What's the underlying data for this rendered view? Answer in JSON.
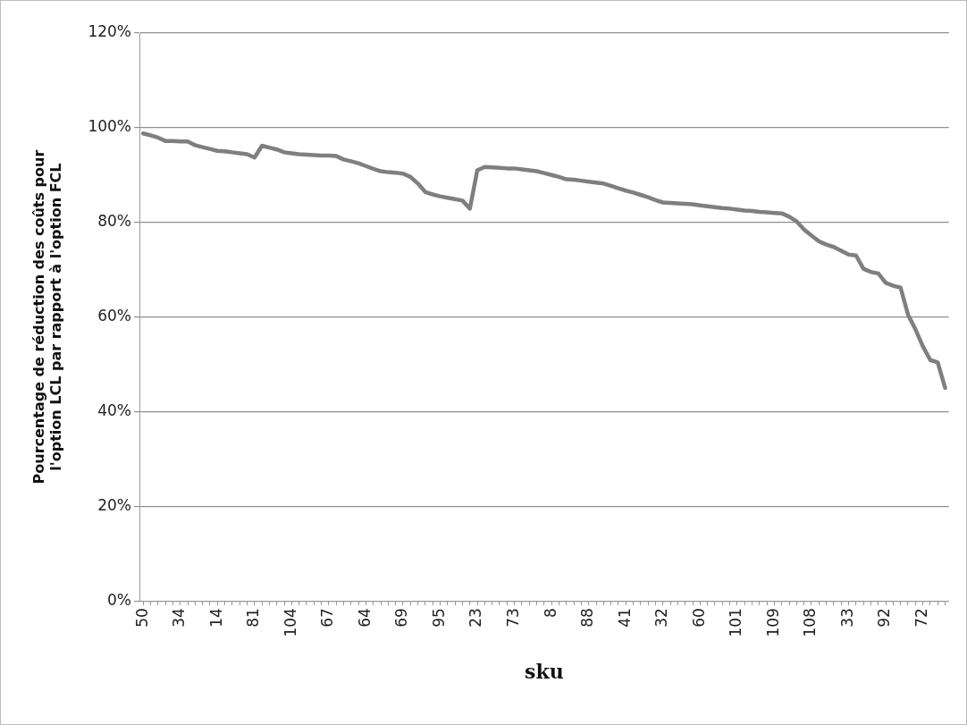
{
  "chart_data": {
    "type": "line",
    "xlabel": "sku",
    "ylabel": "Pourcentage de réduction des coûts pour l'option LCL par rapport à l'option FCL",
    "categories": [
      "50",
      null,
      null,
      null,
      null,
      "34",
      null,
      null,
      null,
      null,
      "14",
      null,
      null,
      null,
      null,
      "81",
      null,
      null,
      null,
      null,
      "104",
      null,
      null,
      null,
      null,
      "67",
      null,
      null,
      null,
      null,
      "64",
      null,
      null,
      null,
      null,
      "69",
      null,
      null,
      null,
      null,
      "95",
      null,
      null,
      null,
      null,
      "23",
      null,
      null,
      null,
      null,
      "73",
      null,
      null,
      null,
      null,
      "8",
      null,
      null,
      null,
      null,
      "88",
      null,
      null,
      null,
      null,
      "41",
      null,
      null,
      null,
      null,
      "32",
      null,
      null,
      null,
      null,
      "60",
      null,
      null,
      null,
      null,
      "101",
      null,
      null,
      null,
      null,
      "109",
      null,
      null,
      null,
      null,
      "108",
      null,
      null,
      null,
      null,
      "33",
      null,
      null,
      null,
      null,
      "92",
      null,
      null,
      null,
      null,
      "72",
      null,
      null,
      null
    ],
    "series": [
      {
        "color": "#7f7f7f",
        "values": [
          98.8,
          98.4,
          97.9,
          97.2,
          97.2,
          97.1,
          97.1,
          96.3,
          95.9,
          95.5,
          95.1,
          95.0,
          94.8,
          94.6,
          94.4,
          93.7,
          96.2,
          95.8,
          95.4,
          94.8,
          94.6,
          94.4,
          94.3,
          94.2,
          94.1,
          94.1,
          94.0,
          93.3,
          92.9,
          92.5,
          91.9,
          91.3,
          90.8,
          90.6,
          90.5,
          90.3,
          89.6,
          88.2,
          86.4,
          85.9,
          85.5,
          85.2,
          84.9,
          84.6,
          82.9,
          91.0,
          91.7,
          91.6,
          91.5,
          91.4,
          91.4,
          91.2,
          91.0,
          90.8,
          90.4,
          90.0,
          89.6,
          89.1,
          89.0,
          88.8,
          88.6,
          88.4,
          88.2,
          87.7,
          87.2,
          86.7,
          86.3,
          85.8,
          85.3,
          84.7,
          84.2,
          84.1,
          84.0,
          83.9,
          83.8,
          83.6,
          83.4,
          83.2,
          83.0,
          82.9,
          82.7,
          82.5,
          82.4,
          82.2,
          82.1,
          82.0,
          81.9,
          81.2,
          80.2,
          78.5,
          77.2,
          76.0,
          75.3,
          74.8,
          74.0,
          73.2,
          73.0,
          70.2,
          69.5,
          69.2,
          67.2,
          66.6,
          66.2,
          60.5,
          57.4,
          53.8,
          50.9,
          50.4,
          45.0
        ]
      }
    ],
    "ylim": [
      0,
      120
    ],
    "yticks": [
      {
        "value": 0,
        "label": "0%"
      },
      {
        "value": 20,
        "label": "20%"
      },
      {
        "value": 40,
        "label": "40%"
      },
      {
        "value": 60,
        "label": "60%"
      },
      {
        "value": 80,
        "label": "80%"
      },
      {
        "value": 100,
        "label": "100%"
      },
      {
        "value": 120,
        "label": "120%"
      }
    ],
    "grid": "y",
    "legend": false,
    "marker": "none",
    "line_style": "solid"
  }
}
